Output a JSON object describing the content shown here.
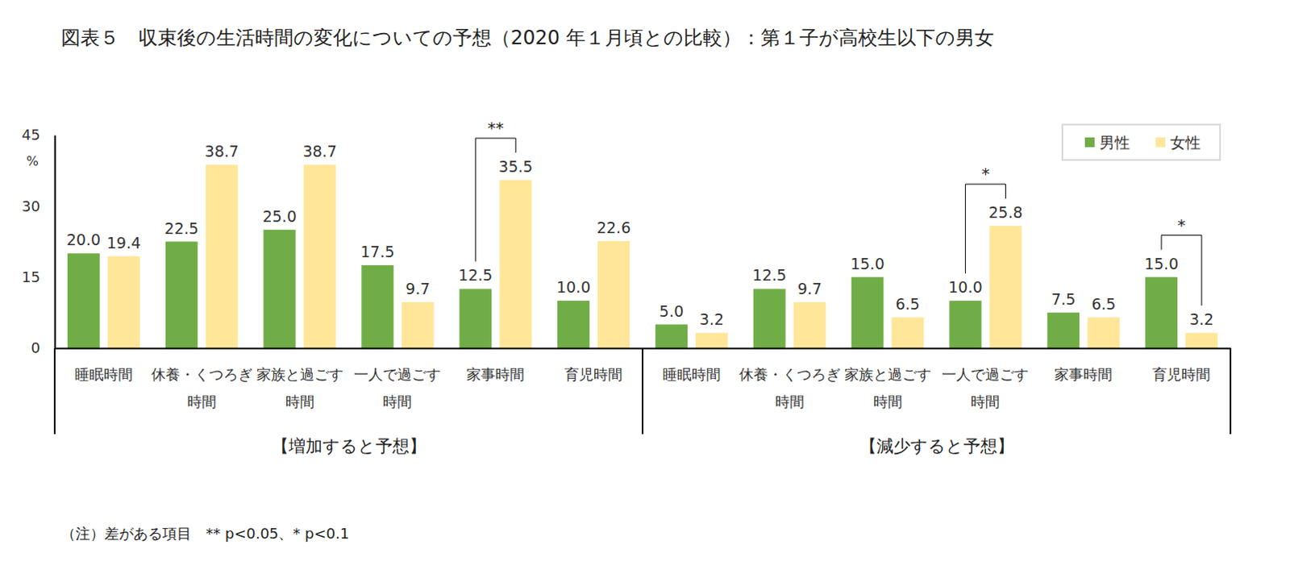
{
  "chart_data": {
    "type": "bar",
    "title": "図表５　収束後の生活時間の変化についての予想（2020 年１月頃との比較）：第１子が高校生以下の男女",
    "categories": [
      "睡眠時間",
      "休養・くつろぎ\n時間",
      "家族と過ごす\n時間",
      "一人で過ごす\n時間",
      "家事時間",
      "育児時間",
      "睡眠時間",
      "休養・くつろぎ\n時間",
      "家族と過ごす\n時間",
      "一人で過ごす\n時間",
      "家事時間",
      "育児時間"
    ],
    "groups": [
      "【増加すると予想】",
      "【減少すると予想】"
    ],
    "series": [
      {
        "name": "男性",
        "color": "#70ad47",
        "values": [
          20.0,
          22.5,
          25.0,
          17.5,
          12.5,
          10.0,
          5.0,
          12.5,
          15.0,
          10.0,
          7.5,
          15.0
        ],
        "value_labels": [
          "20.0",
          "22.5",
          "25.0",
          "17.5",
          "12.5",
          "10.0",
          "5.0",
          "12.5",
          "15.0",
          "10.0",
          "7.5",
          "15.0"
        ]
      },
      {
        "name": "女性",
        "color": "#ffe699",
        "values": [
          19.4,
          38.7,
          38.7,
          9.7,
          35.5,
          22.6,
          3.2,
          9.7,
          6.5,
          25.8,
          6.5,
          3.2
        ],
        "value_labels": [
          "19.4",
          "38.7",
          "38.7",
          "9.7",
          "35.5",
          "22.6",
          "3.2",
          "9.7",
          "6.5",
          "25.8",
          "6.5",
          "3.2"
        ]
      }
    ],
    "ylim": [
      0,
      45
    ],
    "yticks": [
      0,
      15,
      30,
      45
    ],
    "y_unit": "%",
    "grid": false,
    "legend": "upper right",
    "data_labels": true,
    "annotations": [
      {
        "text": "**",
        "index": 4
      },
      {
        "text": "*",
        "index": 9
      },
      {
        "text": "*",
        "index": 11
      }
    ],
    "note": "（注）差がある項目　** p<0.05、* p<0.1"
  }
}
